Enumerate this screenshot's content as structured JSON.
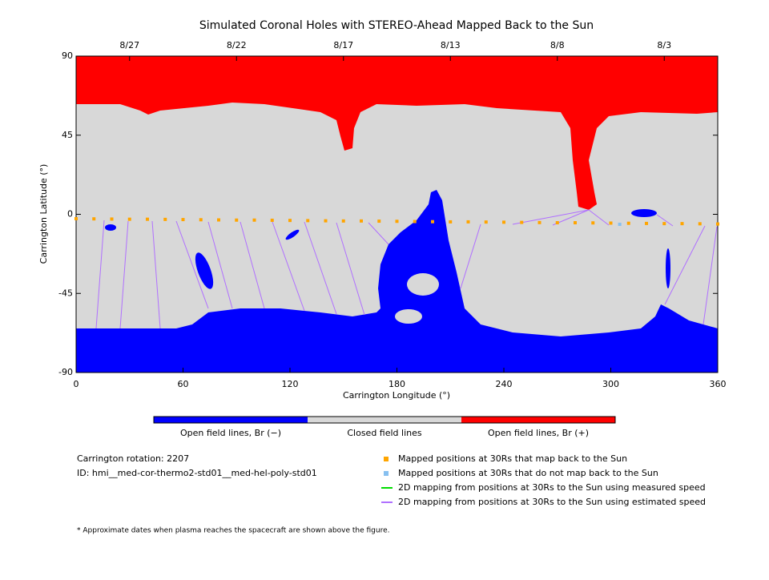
{
  "chart_data": {
    "type": "scatter",
    "title": "Simulated Coronal Holes with STEREO-Ahead Mapped Back to the Sun",
    "x_label": "Carrington Longitude (°)",
    "y_label": "Carrington Latitude (°)",
    "xlim": [
      0,
      360
    ],
    "ylim": [
      -90,
      90
    ],
    "xticks": [
      0,
      60,
      120,
      180,
      240,
      300,
      360
    ],
    "yticks": [
      -90,
      -45,
      0,
      45,
      90
    ],
    "top_ticks": [
      {
        "value": 30,
        "label": "8/27"
      },
      {
        "value": 90,
        "label": "8/22"
      },
      {
        "value": 150,
        "label": "8/17"
      },
      {
        "value": 210,
        "label": "8/13"
      },
      {
        "value": 270,
        "label": "8/8"
      },
      {
        "value": 330,
        "label": "8/3"
      }
    ],
    "series": [
      {
        "name": "Mapped positions at 30Rs that map back to the Sun",
        "color": "#ffa500",
        "x": [
          0,
          10,
          20,
          30,
          40,
          50,
          60,
          70,
          80,
          90,
          100,
          110,
          120,
          130,
          140,
          150,
          160,
          170,
          180,
          190,
          200,
          210,
          220,
          230,
          240,
          250,
          260,
          270,
          280,
          290,
          300,
          310,
          320,
          330,
          340,
          350,
          360
        ],
        "values": [
          -2.5,
          -2.6,
          -2.7,
          -2.8,
          -2.8,
          -2.9,
          -3.0,
          -3.1,
          -3.2,
          -3.3,
          -3.3,
          -3.4,
          -3.5,
          -3.6,
          -3.7,
          -3.8,
          -3.8,
          -3.9,
          -4.0,
          -4.1,
          -4.2,
          -4.3,
          -4.3,
          -4.4,
          -4.5,
          -4.6,
          -4.7,
          -4.8,
          -4.8,
          -4.9,
          -5.0,
          -5.1,
          -5.2,
          -5.3,
          -5.3,
          -5.4,
          -5.5
        ]
      },
      {
        "name": "Mapped positions at 30Rs that do not map back to the Sun",
        "color": "#87c0f0",
        "x": [
          305
        ],
        "values": [
          -5.7
        ]
      }
    ],
    "line_legend": [
      {
        "name": "2D mapping from positions at 30Rs to the Sun using measured speed",
        "color": "#00dd00"
      },
      {
        "name": "2D mapping from positions at 30Rs to the Sun using estimated speed",
        "color": "#b070ff"
      }
    ],
    "colorbar": [
      {
        "label": "Open field lines, Br (−)",
        "color": "#0000ff"
      },
      {
        "label": "Closed field lines",
        "color": "#d8d8d8"
      },
      {
        "label": "Open field lines, Br (+)",
        "color": "#ff0000"
      }
    ],
    "info": [
      "Carrington rotation: 2207",
      "ID: hmi__med-cor-thermo2-std01__med-hel-poly-std01"
    ],
    "footnote": "* Approximate dates when plasma reaches the spacecraft are shown above the figure."
  }
}
